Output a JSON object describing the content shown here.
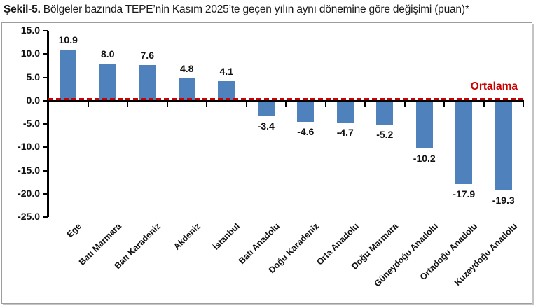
{
  "title": {
    "prefix": "Şekil-5.",
    "text": " Bölgeler bazında TEPE’nin Kasım 2025’te geçen yılın aynı dönemine göre değişimi (puan)*"
  },
  "chart_data": {
    "type": "bar",
    "categories": [
      "Ege",
      "Batı Marmara",
      "Batı Karadeniz",
      "Akdeniz",
      "İstanbul",
      "Batı Anadolu",
      "Doğu Karadeniz",
      "Orta Anadolu",
      "Doğu Marmara",
      "Güneydoğu Anadolu",
      "Ortadoğu Anadolu",
      "Kuzeydoğu Anadolu"
    ],
    "values": [
      10.9,
      8.0,
      7.6,
      4.8,
      4.1,
      -3.4,
      -4.6,
      -4.7,
      -5.2,
      -10.2,
      -17.9,
      -19.3
    ],
    "ylim": [
      -25,
      15
    ],
    "yticks": [
      15,
      10,
      5,
      0,
      -5,
      -10,
      -15,
      -20,
      -25
    ],
    "grid": false,
    "legend": "none",
    "bar_color": "#4F81BD",
    "axis_color": "#000000",
    "average_line": {
      "label": "Ortalama",
      "value": 0.4,
      "color": "#CC0000"
    }
  }
}
